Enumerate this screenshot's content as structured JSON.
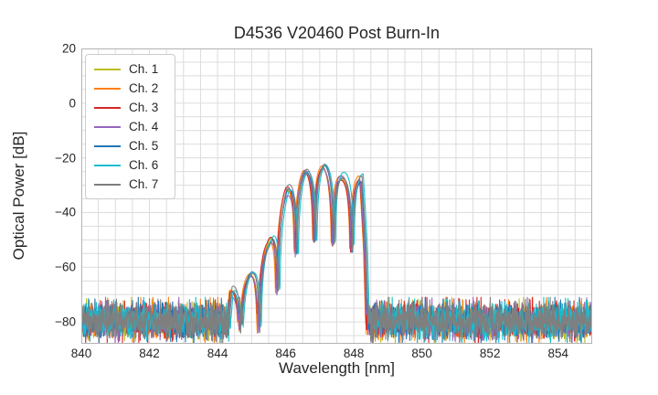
{
  "figure": {
    "background": "#ffffff",
    "text_color": "#262626"
  },
  "chart_data": {
    "type": "line",
    "title": "D4536 V20460 Post Burn-In",
    "xlabel": "Wavelength [nm]",
    "ylabel": "Optical Power [dB]",
    "xlim": [
      840,
      855
    ],
    "ylim": [
      -88,
      20
    ],
    "xticks": [
      840,
      842,
      844,
      846,
      848,
      850,
      852,
      854
    ],
    "yticks": [
      20,
      0,
      -20,
      -40,
      -60,
      -80
    ],
    "grid": {
      "on": true,
      "x_step_nm": 0.5,
      "y_step_db": 5,
      "color": "#dcdcdc",
      "spine_color": "#b3b3b3"
    },
    "legend": {
      "location": "upper left"
    },
    "series": [
      {
        "name": "Ch. 1",
        "color": "#bcbd22",
        "offset_nm": -0.01,
        "trim_db": 0.0,
        "seed": 101
      },
      {
        "name": "Ch. 2",
        "color": "#ff7f0e",
        "offset_nm": -0.055,
        "trim_db": 0.5,
        "seed": 202
      },
      {
        "name": "Ch. 3",
        "color": "#d62728",
        "offset_nm": -0.035,
        "trim_db": 0.0,
        "seed": 303
      },
      {
        "name": "Ch. 4",
        "color": "#9467bd",
        "offset_nm": -0.02,
        "trim_db": -0.8,
        "seed": 404
      },
      {
        "name": "Ch. 5",
        "color": "#1f77b4",
        "offset_nm": 0.015,
        "trim_db": 0.2,
        "seed": 505
      },
      {
        "name": "Ch. 6",
        "color": "#17becf",
        "offset_nm": 0.06,
        "trim_db": 0.3,
        "seed": 606
      },
      {
        "name": "Ch. 7",
        "color": "#7f7f7f",
        "offset_nm": 0.025,
        "trim_db": 0.8,
        "seed": 707
      }
    ],
    "spectrum": {
      "signal_range_nm": [
        844.28,
        848.43
      ],
      "envelope_points": [
        [
          844.28,
          -87
        ],
        [
          844.4,
          -69
        ],
        [
          844.945,
          -62.5
        ],
        [
          845.49,
          -52.5
        ],
        [
          846.035,
          -32.5
        ],
        [
          846.58,
          -24.5
        ],
        [
          847.125,
          -22.8
        ],
        [
          847.67,
          -27.0
        ],
        [
          848.215,
          -27.5
        ],
        [
          848.34,
          -52
        ],
        [
          848.43,
          -87
        ]
      ],
      "lobe_spacing_nm": 0.545,
      "lobe_origin_nm": 844.4,
      "null_depth_db": -26,
      "lobe_jitter_db": 1.6,
      "peak_power_db": -22,
      "peak_wavelength_nm": 847.2
    },
    "noise_floor": {
      "mean_db": -79.5,
      "std_db": 3.2,
      "min_db": -88,
      "max_db": -71
    }
  }
}
